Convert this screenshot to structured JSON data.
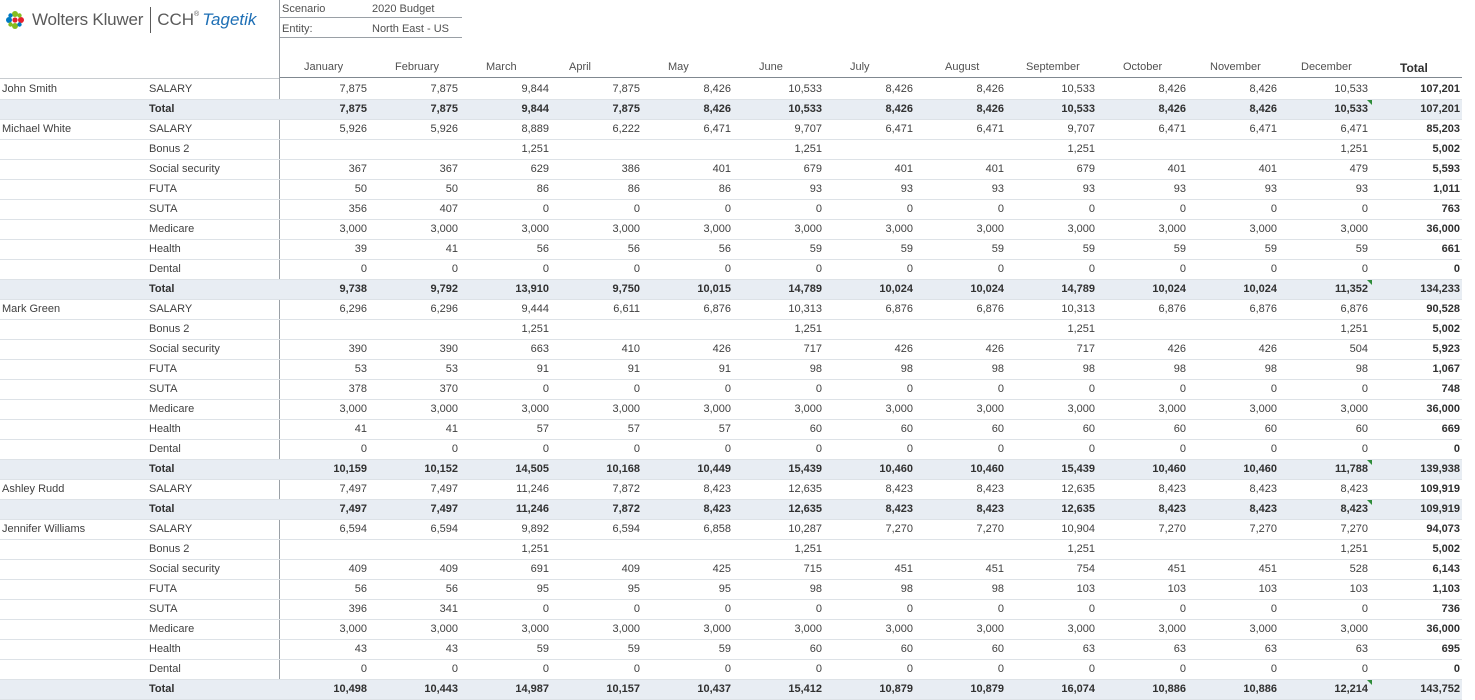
{
  "brand": {
    "name": "Wolters Kluwer",
    "product": "CCH",
    "product_mark": "®",
    "product_name": "Tagetik"
  },
  "colors": {
    "total_row_bg": "#e8edf3",
    "comment_flag": "#2e8b3a",
    "brand_blue": "#1e6fb5"
  },
  "meta": {
    "scenario_label": "Scenario",
    "scenario_value": "2020 Budget",
    "entity_label": "Entity:",
    "entity_value": "North East - US"
  },
  "columns": [
    "January",
    "February",
    "March",
    "April",
    "May",
    "June",
    "July",
    "August",
    "September",
    "October",
    "November",
    "December",
    "Total"
  ],
  "rows": [
    {
      "employee": "John Smith",
      "item": "SALARY",
      "total": false,
      "values": [
        "7,875",
        "7,875",
        "9,844",
        "7,875",
        "8,426",
        "10,533",
        "8,426",
        "8,426",
        "10,533",
        "8,426",
        "8,426",
        "10,533",
        "107,201"
      ]
    },
    {
      "employee": "",
      "item": "Total",
      "total": true,
      "flag": true,
      "values": [
        "7,875",
        "7,875",
        "9,844",
        "7,875",
        "8,426",
        "10,533",
        "8,426",
        "8,426",
        "10,533",
        "8,426",
        "8,426",
        "10,533",
        "107,201"
      ]
    },
    {
      "employee": "Michael White",
      "item": "SALARY",
      "total": false,
      "values": [
        "5,926",
        "5,926",
        "8,889",
        "6,222",
        "6,471",
        "9,707",
        "6,471",
        "6,471",
        "9,707",
        "6,471",
        "6,471",
        "6,471",
        "85,203"
      ]
    },
    {
      "employee": "",
      "item": "Bonus 2",
      "total": false,
      "values": [
        "",
        "",
        "1,251",
        "",
        "",
        "1,251",
        "",
        "",
        "1,251",
        "",
        "",
        "1,251",
        "5,002"
      ]
    },
    {
      "employee": "",
      "item": "Social security",
      "total": false,
      "values": [
        "367",
        "367",
        "629",
        "386",
        "401",
        "679",
        "401",
        "401",
        "679",
        "401",
        "401",
        "479",
        "5,593"
      ]
    },
    {
      "employee": "",
      "item": "FUTA",
      "total": false,
      "values": [
        "50",
        "50",
        "86",
        "86",
        "86",
        "93",
        "93",
        "93",
        "93",
        "93",
        "93",
        "93",
        "1,011"
      ]
    },
    {
      "employee": "",
      "item": "SUTA",
      "total": false,
      "values": [
        "356",
        "407",
        "0",
        "0",
        "0",
        "0",
        "0",
        "0",
        "0",
        "0",
        "0",
        "0",
        "763"
      ]
    },
    {
      "employee": "",
      "item": "Medicare",
      "total": false,
      "values": [
        "3,000",
        "3,000",
        "3,000",
        "3,000",
        "3,000",
        "3,000",
        "3,000",
        "3,000",
        "3,000",
        "3,000",
        "3,000",
        "3,000",
        "36,000"
      ]
    },
    {
      "employee": "",
      "item": "Health",
      "total": false,
      "values": [
        "39",
        "41",
        "56",
        "56",
        "56",
        "59",
        "59",
        "59",
        "59",
        "59",
        "59",
        "59",
        "661"
      ]
    },
    {
      "employee": "",
      "item": "Dental",
      "total": false,
      "values": [
        "0",
        "0",
        "0",
        "0",
        "0",
        "0",
        "0",
        "0",
        "0",
        "0",
        "0",
        "0",
        "0"
      ]
    },
    {
      "employee": "",
      "item": "Total",
      "total": true,
      "flag": true,
      "values": [
        "9,738",
        "9,792",
        "13,910",
        "9,750",
        "10,015",
        "14,789",
        "10,024",
        "10,024",
        "14,789",
        "10,024",
        "10,024",
        "11,352",
        "134,233"
      ]
    },
    {
      "employee": "Mark Green",
      "item": "SALARY",
      "total": false,
      "values": [
        "6,296",
        "6,296",
        "9,444",
        "6,611",
        "6,876",
        "10,313",
        "6,876",
        "6,876",
        "10,313",
        "6,876",
        "6,876",
        "6,876",
        "90,528"
      ]
    },
    {
      "employee": "",
      "item": "Bonus 2",
      "total": false,
      "values": [
        "",
        "",
        "1,251",
        "",
        "",
        "1,251",
        "",
        "",
        "1,251",
        "",
        "",
        "1,251",
        "5,002"
      ]
    },
    {
      "employee": "",
      "item": "Social security",
      "total": false,
      "values": [
        "390",
        "390",
        "663",
        "410",
        "426",
        "717",
        "426",
        "426",
        "717",
        "426",
        "426",
        "504",
        "5,923"
      ]
    },
    {
      "employee": "",
      "item": "FUTA",
      "total": false,
      "values": [
        "53",
        "53",
        "91",
        "91",
        "91",
        "98",
        "98",
        "98",
        "98",
        "98",
        "98",
        "98",
        "1,067"
      ]
    },
    {
      "employee": "",
      "item": "SUTA",
      "total": false,
      "values": [
        "378",
        "370",
        "0",
        "0",
        "0",
        "0",
        "0",
        "0",
        "0",
        "0",
        "0",
        "0",
        "748"
      ]
    },
    {
      "employee": "",
      "item": "Medicare",
      "total": false,
      "values": [
        "3,000",
        "3,000",
        "3,000",
        "3,000",
        "3,000",
        "3,000",
        "3,000",
        "3,000",
        "3,000",
        "3,000",
        "3,000",
        "3,000",
        "36,000"
      ]
    },
    {
      "employee": "",
      "item": "Health",
      "total": false,
      "values": [
        "41",
        "41",
        "57",
        "57",
        "57",
        "60",
        "60",
        "60",
        "60",
        "60",
        "60",
        "60",
        "669"
      ]
    },
    {
      "employee": "",
      "item": "Dental",
      "total": false,
      "values": [
        "0",
        "0",
        "0",
        "0",
        "0",
        "0",
        "0",
        "0",
        "0",
        "0",
        "0",
        "0",
        "0"
      ]
    },
    {
      "employee": "",
      "item": "Total",
      "total": true,
      "flag": true,
      "values": [
        "10,159",
        "10,152",
        "14,505",
        "10,168",
        "10,449",
        "15,439",
        "10,460",
        "10,460",
        "15,439",
        "10,460",
        "10,460",
        "11,788",
        "139,938"
      ]
    },
    {
      "employee": "Ashley Rudd",
      "item": "SALARY",
      "total": false,
      "values": [
        "7,497",
        "7,497",
        "11,246",
        "7,872",
        "8,423",
        "12,635",
        "8,423",
        "8,423",
        "12,635",
        "8,423",
        "8,423",
        "8,423",
        "109,919"
      ]
    },
    {
      "employee": "",
      "item": "Total",
      "total": true,
      "flag": true,
      "values": [
        "7,497",
        "7,497",
        "11,246",
        "7,872",
        "8,423",
        "12,635",
        "8,423",
        "8,423",
        "12,635",
        "8,423",
        "8,423",
        "8,423",
        "109,919"
      ]
    },
    {
      "employee": "Jennifer Williams",
      "item": "SALARY",
      "total": false,
      "values": [
        "6,594",
        "6,594",
        "9,892",
        "6,594",
        "6,858",
        "10,287",
        "7,270",
        "7,270",
        "10,904",
        "7,270",
        "7,270",
        "7,270",
        "94,073"
      ]
    },
    {
      "employee": "",
      "item": "Bonus 2",
      "total": false,
      "values": [
        "",
        "",
        "1,251",
        "",
        "",
        "1,251",
        "",
        "",
        "1,251",
        "",
        "",
        "1,251",
        "5,002"
      ]
    },
    {
      "employee": "",
      "item": "Social security",
      "total": false,
      "values": [
        "409",
        "409",
        "691",
        "409",
        "425",
        "715",
        "451",
        "451",
        "754",
        "451",
        "451",
        "528",
        "6,143"
      ]
    },
    {
      "employee": "",
      "item": "FUTA",
      "total": false,
      "values": [
        "56",
        "56",
        "95",
        "95",
        "95",
        "98",
        "98",
        "98",
        "103",
        "103",
        "103",
        "103",
        "1,103"
      ]
    },
    {
      "employee": "",
      "item": "SUTA",
      "total": false,
      "values": [
        "396",
        "341",
        "0",
        "0",
        "0",
        "0",
        "0",
        "0",
        "0",
        "0",
        "0",
        "0",
        "736"
      ]
    },
    {
      "employee": "",
      "item": "Medicare",
      "total": false,
      "values": [
        "3,000",
        "3,000",
        "3,000",
        "3,000",
        "3,000",
        "3,000",
        "3,000",
        "3,000",
        "3,000",
        "3,000",
        "3,000",
        "3,000",
        "36,000"
      ]
    },
    {
      "employee": "",
      "item": "Health",
      "total": false,
      "values": [
        "43",
        "43",
        "59",
        "59",
        "59",
        "60",
        "60",
        "60",
        "63",
        "63",
        "63",
        "63",
        "695"
      ]
    },
    {
      "employee": "",
      "item": "Dental",
      "total": false,
      "values": [
        "0",
        "0",
        "0",
        "0",
        "0",
        "0",
        "0",
        "0",
        "0",
        "0",
        "0",
        "0",
        "0"
      ]
    },
    {
      "employee": "",
      "item": "Total",
      "total": true,
      "flag": true,
      "values": [
        "10,498",
        "10,443",
        "14,987",
        "10,157",
        "10,437",
        "15,412",
        "10,879",
        "10,879",
        "16,074",
        "10,886",
        "10,886",
        "12,214",
        "143,752"
      ]
    }
  ]
}
